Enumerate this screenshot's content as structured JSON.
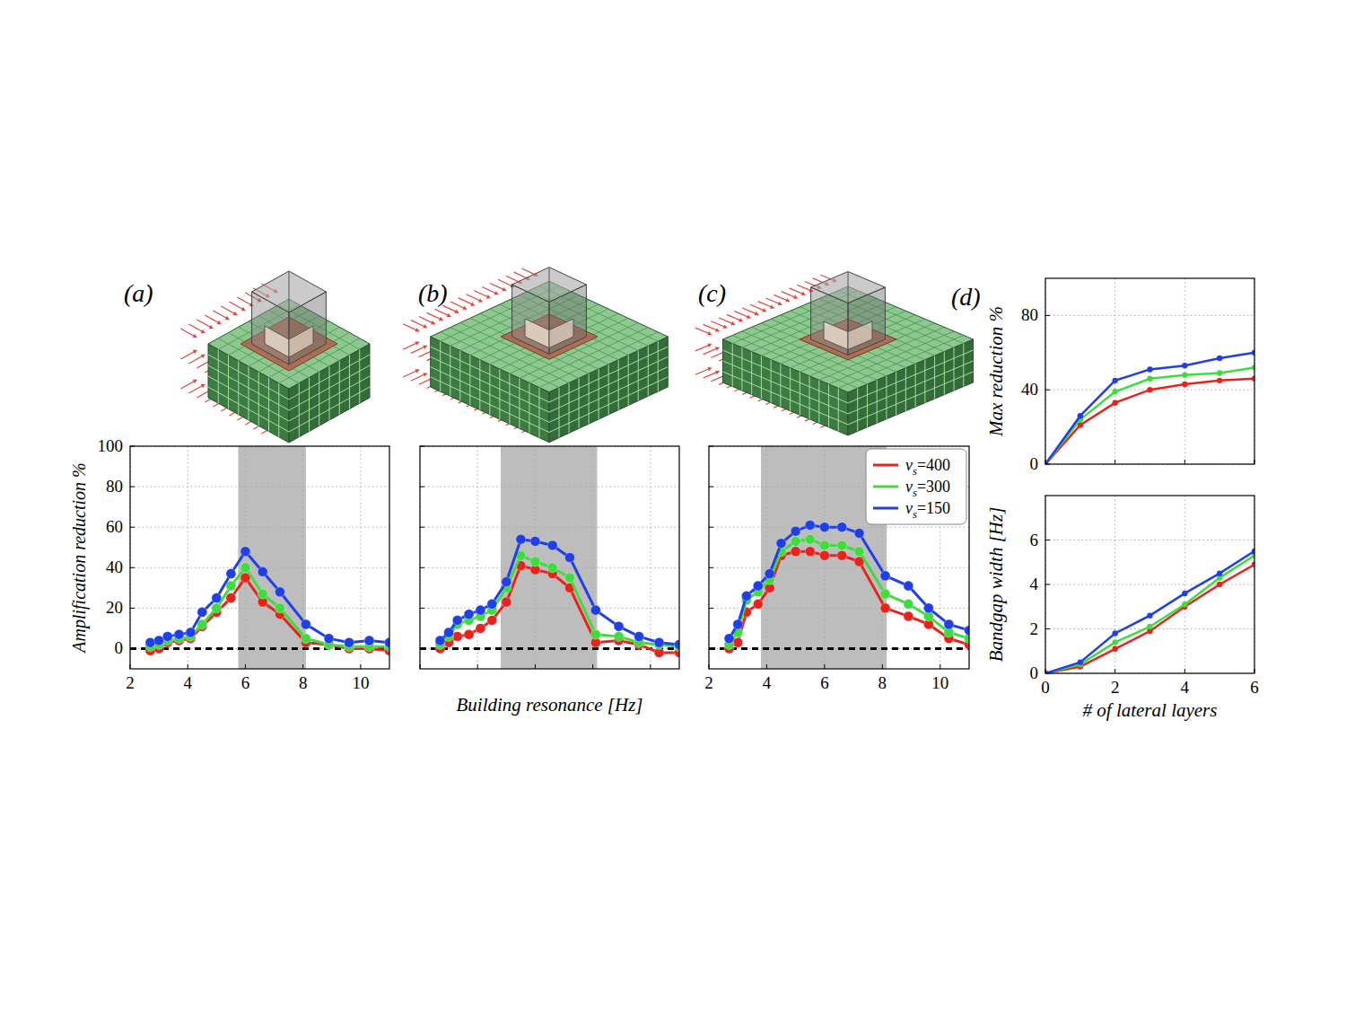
{
  "chart_data": [
    {
      "type": "line",
      "title": "(a)",
      "y_label": "Amplification reduction %",
      "x": [
        2.7,
        3.0,
        3.3,
        3.7,
        4.1,
        4.5,
        5.0,
        5.5,
        6.0,
        6.6,
        7.2,
        8.1,
        8.9,
        9.6,
        10.3,
        11.0
      ],
      "xlim": [
        2,
        11
      ],
      "xticks": [
        2,
        4,
        6,
        8,
        10
      ],
      "ylim": [
        -10,
        100
      ],
      "yticks": [
        0,
        20,
        40,
        60,
        80,
        100
      ],
      "grid": true,
      "marker": "circle",
      "bandgap": [
        5.75,
        8.1
      ],
      "baseline": 0,
      "series": [
        {
          "name": "vs=400",
          "color": "#e8221c",
          "values": [
            -1,
            0,
            3,
            4,
            5,
            11,
            18,
            25,
            35,
            23,
            17,
            3,
            2,
            0,
            0,
            -1
          ]
        },
        {
          "name": "vs=300",
          "color": "#3fdc3f",
          "values": [
            1,
            2,
            4,
            5,
            6,
            12,
            20,
            31,
            40,
            27,
            20,
            5,
            2,
            1,
            1,
            1
          ]
        },
        {
          "name": "vs=150",
          "color": "#1f3fe8",
          "values": [
            3,
            4,
            6,
            7,
            8,
            18,
            25,
            37,
            48,
            38,
            28,
            12,
            5,
            3,
            4,
            3
          ]
        }
      ]
    },
    {
      "type": "line",
      "title": "(b)",
      "x_label": "Building resonance [Hz]",
      "x": [
        2.7,
        3.0,
        3.3,
        3.7,
        4.1,
        4.5,
        5.0,
        5.5,
        6.0,
        6.6,
        7.2,
        8.1,
        8.9,
        9.6,
        10.3,
        11.0
      ],
      "xlim": [
        2,
        11
      ],
      "xticks": [
        2,
        4,
        6,
        8,
        10
      ],
      "ylim": [
        -10,
        100
      ],
      "yticks": [
        0,
        20,
        40,
        60,
        80,
        100
      ],
      "grid": true,
      "tick_labels": false,
      "marker": "circle",
      "bandgap": [
        4.8,
        8.15
      ],
      "baseline": 0,
      "series": [
        {
          "name": "vs=400",
          "color": "#e8221c",
          "values": [
            0,
            3,
            6,
            7,
            10,
            14,
            23,
            41,
            39,
            37,
            30,
            3,
            4,
            2,
            -2,
            -2
          ]
        },
        {
          "name": "vs=300",
          "color": "#3fdc3f",
          "values": [
            2,
            6,
            12,
            14,
            16,
            19,
            30,
            46,
            43,
            40,
            35,
            7,
            6,
            3,
            2,
            1
          ]
        },
        {
          "name": "vs=150",
          "color": "#1f3fe8",
          "values": [
            4,
            8,
            14,
            17,
            19,
            22,
            33,
            54,
            53,
            51,
            45,
            19,
            11,
            6,
            3,
            2
          ]
        }
      ]
    },
    {
      "type": "line",
      "title": "(c)",
      "x": [
        2.7,
        3.0,
        3.3,
        3.7,
        4.1,
        4.5,
        5.0,
        5.5,
        6.0,
        6.6,
        7.2,
        8.1,
        8.9,
        9.6,
        10.3,
        11.0
      ],
      "xlim": [
        2,
        11
      ],
      "xticks": [
        2,
        4,
        6,
        8,
        10
      ],
      "ylim": [
        -10,
        100
      ],
      "yticks": [
        0,
        20,
        40,
        60,
        80,
        100
      ],
      "grid": true,
      "tick_labels": "x",
      "marker": "circle",
      "bandgap": [
        3.8,
        8.15
      ],
      "baseline": 0,
      "legend": "upper right",
      "series": [
        {
          "name": "vs=400",
          "color": "#e8221c",
          "values": [
            0,
            3,
            18,
            22,
            30,
            46,
            48,
            48,
            46,
            46,
            43,
            20,
            16,
            12,
            5,
            2
          ]
        },
        {
          "name": "vs=300",
          "color": "#3fdc3f",
          "values": [
            2,
            8,
            24,
            28,
            34,
            48,
            53,
            54,
            51,
            51,
            48,
            27,
            22,
            16,
            8,
            5
          ]
        },
        {
          "name": "vs=150",
          "color": "#1f3fe8",
          "values": [
            5,
            12,
            26,
            31,
            37,
            52,
            58,
            61,
            60,
            60,
            57,
            36,
            31,
            20,
            12,
            9
          ]
        }
      ]
    },
    {
      "type": "line",
      "title": "(d)",
      "y_label": "Max reduction %",
      "x": [
        0,
        1,
        2,
        3,
        4,
        5,
        6
      ],
      "xlim": [
        0,
        6
      ],
      "xticks": [
        0,
        2,
        4,
        6
      ],
      "ylim": [
        0,
        100
      ],
      "yticks": [
        0,
        40,
        80
      ],
      "grid": true,
      "tick_labels": "y",
      "marker": "point",
      "series": [
        {
          "name": "vs=400",
          "color": "#e8221c",
          "values": [
            0,
            21,
            33,
            40,
            43,
            45,
            46
          ]
        },
        {
          "name": "vs=300",
          "color": "#3fdc3f",
          "values": [
            0,
            24,
            39,
            46,
            48,
            49,
            52
          ]
        },
        {
          "name": "vs=150",
          "color": "#1f3fe8",
          "values": [
            0,
            26,
            45,
            51,
            53,
            57,
            60
          ]
        }
      ]
    },
    {
      "type": "line",
      "x_label": "# of lateral layers",
      "y_label": "Bandgap width [Hz]",
      "x": [
        0,
        1,
        2,
        3,
        4,
        5,
        6
      ],
      "xlim": [
        0,
        6
      ],
      "xticks": [
        0,
        2,
        4,
        6
      ],
      "ylim": [
        0,
        8
      ],
      "yticks": [
        0,
        2,
        4,
        6
      ],
      "grid": true,
      "marker": "point",
      "series": [
        {
          "name": "vs=400",
          "color": "#e8221c",
          "values": [
            0,
            0.3,
            1.1,
            1.9,
            3.0,
            4.0,
            4.9
          ]
        },
        {
          "name": "vs=300",
          "color": "#3fdc3f",
          "values": [
            0,
            0.4,
            1.4,
            2.1,
            3.1,
            4.3,
            5.3
          ]
        },
        {
          "name": "vs=150",
          "color": "#1f3fe8",
          "values": [
            0,
            0.5,
            1.8,
            2.6,
            3.6,
            4.5,
            5.5
          ]
        }
      ]
    }
  ]
}
